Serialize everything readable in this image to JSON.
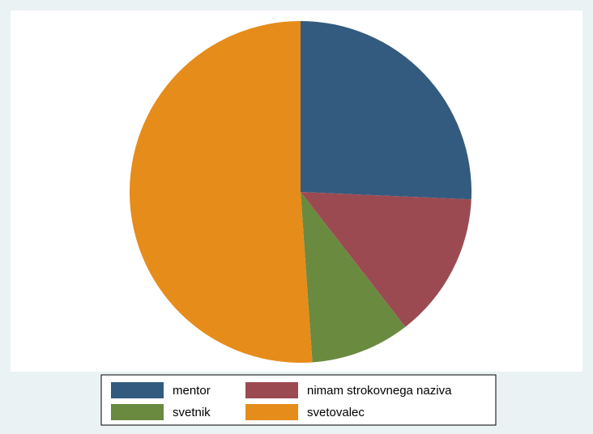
{
  "chart_data": {
    "type": "pie",
    "categories": [
      "mentor",
      "nimam strokovnega naziva",
      "svetnik",
      "svetovalec"
    ],
    "values": [
      25.7,
      13.8,
      9.4,
      51.1
    ],
    "colors": [
      "#335b7f",
      "#9c4a51",
      "#6a8a40",
      "#e68c1a"
    ],
    "legend": "bottom"
  }
}
